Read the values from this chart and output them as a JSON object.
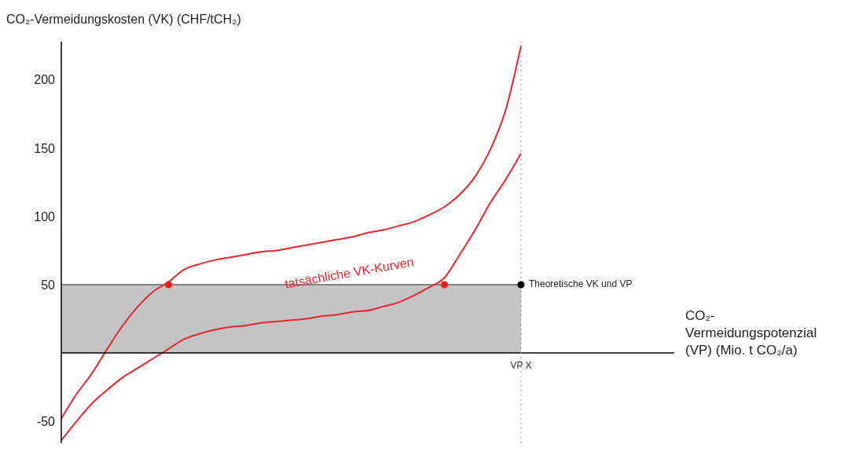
{
  "chart_data": {
    "type": "line",
    "ylabel": "CO₂-Vermeidungskosten (VK) (CHF/tCH₂)",
    "xlabel": "CO₂-Vermeidungspotenzial (VP) (Mio. t CO₂/a)",
    "categories": [
      null,
      null,
      null,
      null,
      null,
      null,
      null,
      null,
      null,
      null,
      null,
      null,
      null,
      null,
      null,
      null,
      null,
      null,
      null,
      null,
      null,
      null,
      null,
      null,
      null,
      null,
      null,
      null,
      null,
      null,
      "VP X",
      null,
      null,
      null,
      null,
      null,
      null,
      null,
      null,
      null,
      null
    ],
    "ylim": [
      -66,
      228
    ],
    "yticks": [
      -50,
      50,
      100,
      150,
      200
    ],
    "grid": false,
    "legend": false,
    "series": [
      {
        "type": "area",
        "color": "#c4c4c4",
        "values": [
          50,
          50,
          50,
          50,
          50,
          50,
          50,
          50,
          50,
          50,
          50,
          50,
          50,
          50,
          50,
          50,
          50,
          50,
          50,
          50,
          50,
          50,
          50,
          50,
          50,
          50,
          50,
          50,
          50,
          50,
          50,
          null,
          null,
          null,
          null,
          null,
          null,
          null,
          null,
          null,
          null
        ]
      },
      {
        "color": "#e8262b",
        "marker": "none",
        "values": [
          -48,
          -30,
          -15,
          3,
          20,
          34,
          45,
          52,
          61,
          65,
          68,
          70,
          72,
          74,
          75,
          77,
          79,
          81,
          83,
          85,
          88,
          90,
          93,
          96,
          101,
          107,
          116,
          129,
          149,
          178,
          225,
          null,
          null,
          null,
          null,
          null,
          null,
          null,
          null,
          null,
          null
        ]
      },
      {
        "color": "#e8262b",
        "marker": "none",
        "values": [
          -64,
          -50,
          -37,
          -27,
          -18,
          -11,
          -4,
          3,
          10,
          14,
          17,
          19,
          20,
          22,
          23,
          24,
          25,
          27,
          28,
          30,
          31,
          34,
          37,
          42,
          48,
          55,
          72,
          90,
          110,
          127,
          146,
          null,
          null,
          null,
          null,
          null,
          null,
          null,
          null,
          null,
          null
        ]
      },
      {
        "type": "scatter",
        "color": "#ee1c1c",
        "marker": "circle",
        "values": [
          null,
          null,
          null,
          null,
          null,
          null,
          null,
          50,
          null,
          null,
          null,
          null,
          null,
          null,
          null,
          null,
          null,
          null,
          null,
          null,
          null,
          null,
          null,
          null,
          null,
          50,
          null,
          null,
          null,
          null,
          null,
          null,
          null,
          null,
          null,
          null,
          null,
          null,
          null,
          null,
          null
        ]
      },
      {
        "type": "scatter",
        "color": "#000000",
        "marker": "circle",
        "values": [
          null,
          null,
          null,
          null,
          null,
          null,
          null,
          null,
          null,
          null,
          null,
          null,
          null,
          null,
          null,
          null,
          null,
          null,
          null,
          null,
          null,
          null,
          null,
          null,
          null,
          null,
          null,
          null,
          null,
          null,
          50,
          null,
          null,
          null,
          null,
          null,
          null,
          null,
          null,
          null,
          null
        ]
      }
    ],
    "ref_lines": [
      {
        "axis": "y",
        "value": 0,
        "color": "#000000",
        "line_style": "solid"
      },
      {
        "axis": "x",
        "value": "VP X",
        "color": "#888888",
        "line_style": "dotted"
      }
    ],
    "annotations": [
      "tatsächliche VK-Kurven",
      {
        "text": "Theoretische VK und VP",
        "x": "VP X",
        "y": 50
      }
    ]
  }
}
